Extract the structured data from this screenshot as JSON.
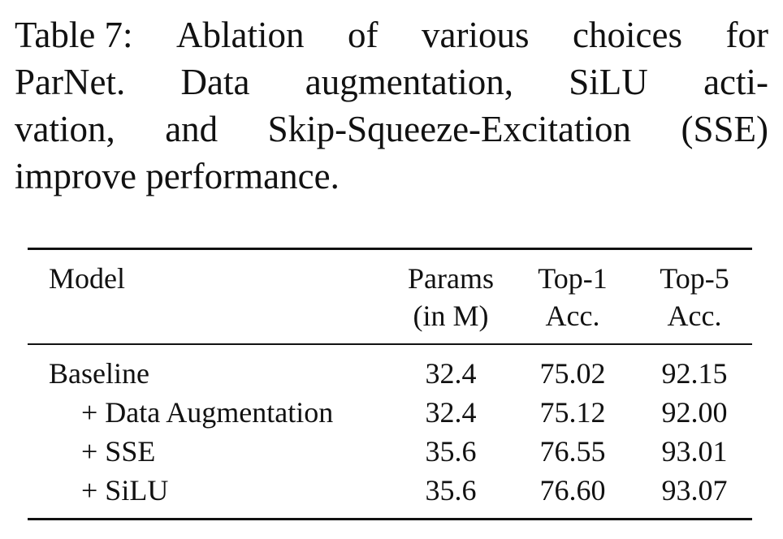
{
  "caption": {
    "lines": [
      [
        "Table 7:",
        "Ablation",
        "of",
        "various",
        "choices",
        "for"
      ],
      [
        "ParNet.",
        "Data",
        "augmentation,",
        "SiLU",
        "acti-"
      ],
      [
        "vation,",
        "and",
        "Skip-Squeeze-Excitation",
        "(SSE)"
      ],
      [
        "improve performance."
      ]
    ]
  },
  "table": {
    "headers": {
      "model": "Model",
      "params": [
        "Params",
        "(in M)"
      ],
      "top1": [
        "Top-1",
        "Acc."
      ],
      "top5": [
        "Top-5",
        "Acc."
      ]
    },
    "rows": [
      {
        "model": "Baseline",
        "params": "32.4",
        "top1": "75.02",
        "top5": "92.15"
      },
      {
        "model": "+ Data Augmentation",
        "params": "32.4",
        "top1": "75.12",
        "top5": "92.00"
      },
      {
        "model": "+ SSE",
        "params": "35.6",
        "top1": "76.55",
        "top5": "93.01"
      },
      {
        "model": "+ SiLU",
        "params": "35.6",
        "top1": "76.60",
        "top5": "93.07"
      }
    ]
  }
}
